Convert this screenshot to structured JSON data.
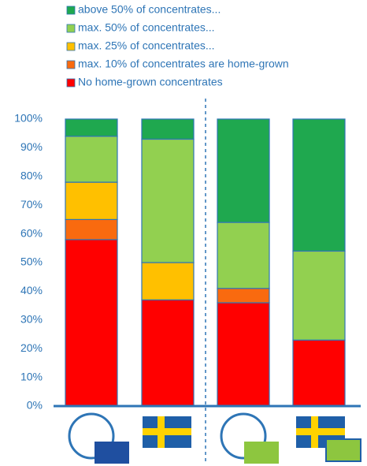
{
  "chart_data": {
    "type": "stacked_bar",
    "categories": [
      null,
      null,
      null,
      null
    ],
    "series": [
      {
        "name": "No home-grown concentrates",
        "color": "#ff0000",
        "values": [
          58,
          37,
          36,
          23
        ]
      },
      {
        "name": "max. 10% of concentrates are home-grown",
        "color": "#f96a0f",
        "values": [
          7,
          0,
          5,
          0
        ]
      },
      {
        "name": "max. 25% of concentrates...",
        "color": "#ffc000",
        "values": [
          13,
          13,
          0,
          0
        ]
      },
      {
        "name": "max. 50% of concentrates...",
        "color": "#92d050",
        "values": [
          16,
          43,
          23,
          31
        ]
      },
      {
        "name": "above 50% of concentrates...",
        "color": "#1fa84f",
        "values": [
          6,
          7,
          36,
          46
        ]
      }
    ],
    "ylim": [
      0,
      100
    ],
    "yticks": [
      {
        "value": 0,
        "label": "0%"
      },
      {
        "value": 10,
        "label": "10%"
      },
      {
        "value": 20,
        "label": "20%"
      },
      {
        "value": 30,
        "label": "30%"
      },
      {
        "value": 40,
        "label": "40%"
      },
      {
        "value": 50,
        "label": "50%"
      },
      {
        "value": 60,
        "label": "60%"
      },
      {
        "value": 70,
        "label": "70%"
      },
      {
        "value": 80,
        "label": "80%"
      },
      {
        "value": 90,
        "label": "90%"
      },
      {
        "value": 100,
        "label": "100%"
      }
    ],
    "grid": false
  }
}
